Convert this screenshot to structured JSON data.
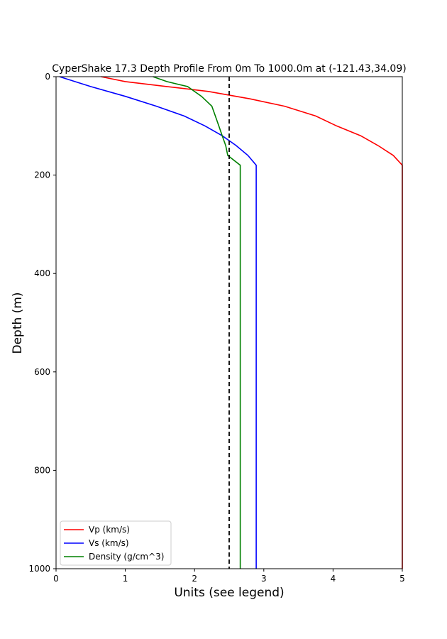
{
  "chart_data": {
    "type": "line",
    "title": "CyperShake 17.3 Depth Profile From 0m To 1000.0m at (-121.43,34.09)",
    "xlabel": "Units (see legend)",
    "ylabel": "Depth (m)",
    "xlim": [
      0,
      5
    ],
    "ylim": [
      0,
      1000
    ],
    "y_inverted": true,
    "x_ticks": [
      "0",
      "1",
      "2",
      "3",
      "4",
      "5"
    ],
    "y_ticks": [
      "0",
      "200",
      "400",
      "600",
      "800",
      "1000"
    ],
    "grid": false,
    "legend_position": "lower-left",
    "series": [
      {
        "name": "Vp (km/s)",
        "color": "#ff0000",
        "points": [
          [
            0.65,
            0
          ],
          [
            1.0,
            10
          ],
          [
            1.6,
            20
          ],
          [
            2.2,
            30
          ],
          [
            2.8,
            45
          ],
          [
            3.3,
            60
          ],
          [
            3.75,
            80
          ],
          [
            4.05,
            100
          ],
          [
            4.4,
            120
          ],
          [
            4.65,
            140
          ],
          [
            4.87,
            160
          ],
          [
            5.0,
            180
          ],
          [
            5.0,
            1000
          ]
        ]
      },
      {
        "name": "Vs (km/s)",
        "color": "#0000ff",
        "points": [
          [
            0.05,
            0
          ],
          [
            0.5,
            20
          ],
          [
            1.0,
            40
          ],
          [
            1.45,
            60
          ],
          [
            1.85,
            80
          ],
          [
            2.15,
            100
          ],
          [
            2.4,
            120
          ],
          [
            2.6,
            140
          ],
          [
            2.77,
            160
          ],
          [
            2.89,
            180
          ],
          [
            2.89,
            1000
          ]
        ]
      },
      {
        "name": "Density (g/cm^3)",
        "color": "#008000",
        "points": [
          [
            1.4,
            0
          ],
          [
            1.6,
            10
          ],
          [
            1.9,
            20
          ],
          [
            2.1,
            40
          ],
          [
            2.25,
            60
          ],
          [
            2.3,
            80
          ],
          [
            2.35,
            100
          ],
          [
            2.4,
            120
          ],
          [
            2.45,
            140
          ],
          [
            2.48,
            160
          ],
          [
            2.66,
            180
          ],
          [
            2.66,
            1000
          ]
        ]
      }
    ],
    "reference_line": {
      "x": 2.5,
      "style": "dashed",
      "color": "#000000"
    }
  }
}
